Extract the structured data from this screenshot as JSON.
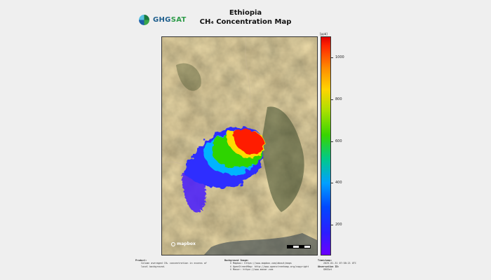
{
  "logo": {
    "part1": "GHG",
    "part2": "SAT"
  },
  "title": {
    "line1": "Ethiopia",
    "line2": "CH₄ Concentration Map"
  },
  "colorbar": {
    "unit": "[ppb]",
    "ticks": [
      {
        "label": "200",
        "value": 200
      },
      {
        "label": "400",
        "value": 400
      },
      {
        "label": "600",
        "value": 600
      },
      {
        "label": "800",
        "value": 800
      },
      {
        "label": "1000",
        "value": 1000
      }
    ],
    "range": [
      60,
      1100
    ]
  },
  "map_attribution": {
    "logo_text": "mapbox"
  },
  "footer": {
    "product": {
      "heading": "Product:",
      "lines": [
        "Column averaged CH₄ concentration in excess of",
        "local background."
      ]
    },
    "background": {
      "heading": "Background Image:",
      "lines": [
        "© Mapbox: https://www.mapbox.com/about/maps",
        "© OpenStreetMap: http://www.openstreetmap.org/copyright",
        "© Maxar: https://www.maxar.com"
      ]
    },
    "meta": {
      "timestamp_heading": "Timestamp:",
      "timestamp": "2025-01-31 07:58:21 UTC",
      "observation_heading": "Observation ID:",
      "observation": "GHGSat"
    }
  },
  "colors": {
    "background": "#efefef",
    "logo_blue": "#1c5d8c",
    "logo_green": "#2f9c4a"
  }
}
